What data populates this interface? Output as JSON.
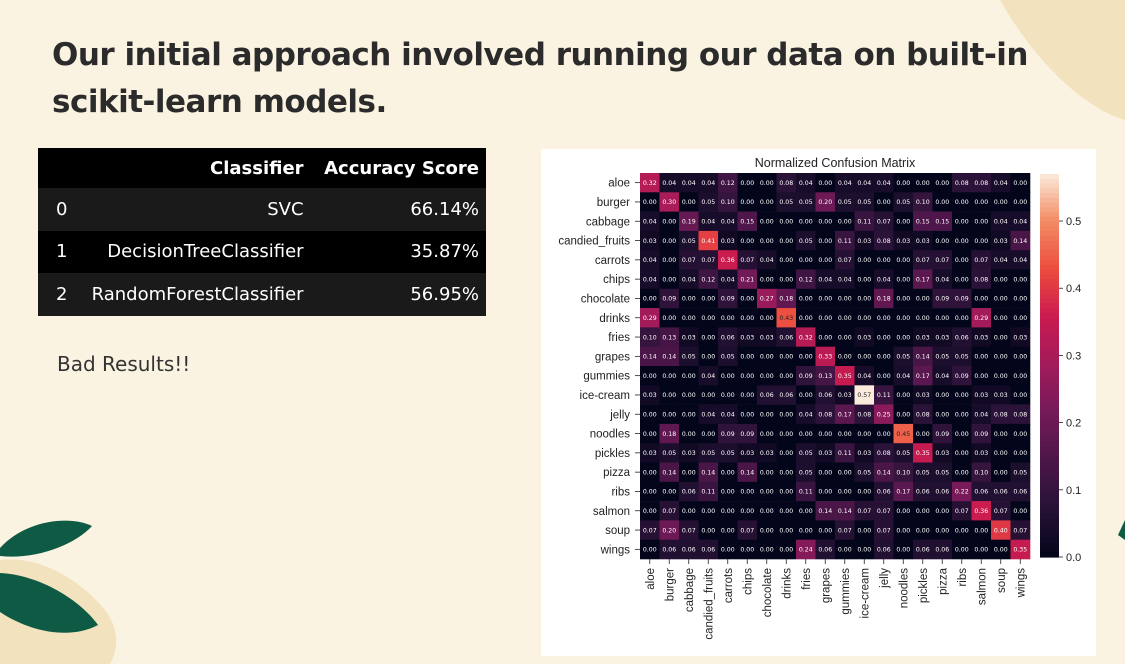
{
  "slide": {
    "title_line1": "Our initial approach involved running our data on built-in",
    "title_line2": "scikit-learn models.",
    "note": "Bad Results!!"
  },
  "results_table": {
    "headers": [
      "",
      "Classifier",
      "Accuracy Score"
    ],
    "rows": [
      {
        "index": "0",
        "classifier": "SVC",
        "accuracy": "66.14%"
      },
      {
        "index": "1",
        "classifier": "DecisionTreeClassifier",
        "accuracy": "35.87%"
      },
      {
        "index": "2",
        "classifier": "RandomForestClassifier",
        "accuracy": "56.95%"
      }
    ]
  },
  "colors": {
    "background": "#fbf3e2",
    "leaf_green": "#0f5a45",
    "leaf_beige": "#f3e4c1"
  },
  "chart_data": {
    "type": "heatmap",
    "title": "Normalized Confusion Matrix",
    "labels": [
      "aloe",
      "burger",
      "cabbage",
      "candied_fruits",
      "carrots",
      "chips",
      "chocolate",
      "drinks",
      "fries",
      "grapes",
      "gummies",
      "ice-cream",
      "jelly",
      "noodles",
      "pickles",
      "pizza",
      "ribs",
      "salmon",
      "soup",
      "wings"
    ],
    "matrix": [
      [
        0.32,
        0.04,
        0.04,
        0.04,
        0.12,
        0.0,
        0.0,
        0.08,
        0.04,
        0.0,
        0.04,
        0.04,
        0.04,
        0.0,
        0.0,
        0.0,
        0.08,
        0.08,
        0.04,
        0.0
      ],
      [
        0.0,
        0.3,
        0.0,
        0.05,
        0.1,
        0.0,
        0.0,
        0.05,
        0.05,
        0.2,
        0.05,
        0.05,
        0.0,
        0.05,
        0.1,
        0.0,
        0.0,
        0.0,
        0.0,
        0.0
      ],
      [
        0.04,
        0.0,
        0.19,
        0.04,
        0.04,
        0.15,
        0.0,
        0.0,
        0.0,
        0.0,
        0.0,
        0.11,
        0.07,
        0.0,
        0.15,
        0.15,
        0.0,
        0.0,
        0.04,
        0.04
      ],
      [
        0.03,
        0.0,
        0.05,
        0.41,
        0.03,
        0.0,
        0.0,
        0.0,
        0.05,
        0.0,
        0.11,
        0.03,
        0.08,
        0.03,
        0.03,
        0.0,
        0.0,
        0.0,
        0.03,
        0.14
      ],
      [
        0.04,
        0.0,
        0.07,
        0.07,
        0.36,
        0.07,
        0.04,
        0.0,
        0.0,
        0.0,
        0.07,
        0.0,
        0.0,
        0.0,
        0.07,
        0.07,
        0.0,
        0.07,
        0.04,
        0.04
      ],
      [
        0.04,
        0.0,
        0.04,
        0.12,
        0.04,
        0.21,
        0.0,
        0.0,
        0.12,
        0.04,
        0.04,
        0.0,
        0.04,
        0.0,
        0.17,
        0.04,
        0.0,
        0.08,
        0.0,
        0.0
      ],
      [
        0.0,
        0.09,
        0.0,
        0.0,
        0.09,
        0.0,
        0.27,
        0.18,
        0.0,
        0.0,
        0.0,
        0.0,
        0.18,
        0.0,
        0.0,
        0.09,
        0.09,
        0.0,
        0.0,
        0.0
      ],
      [
        0.29,
        0.0,
        0.0,
        0.0,
        0.0,
        0.0,
        0.0,
        0.43,
        0.0,
        0.0,
        0.0,
        0.0,
        0.0,
        0.0,
        0.0,
        0.0,
        0.0,
        0.29,
        0.0,
        0.0
      ],
      [
        0.1,
        0.13,
        0.03,
        0.0,
        0.06,
        0.03,
        0.03,
        0.06,
        0.32,
        0.0,
        0.0,
        0.03,
        0.0,
        0.0,
        0.03,
        0.03,
        0.06,
        0.03,
        0.0,
        0.03
      ],
      [
        0.14,
        0.14,
        0.05,
        0.0,
        0.05,
        0.0,
        0.0,
        0.0,
        0.0,
        0.33,
        0.0,
        0.0,
        0.0,
        0.05,
        0.14,
        0.05,
        0.05,
        0.0,
        0.0,
        0.0
      ],
      [
        0.0,
        0.0,
        0.0,
        0.04,
        0.0,
        0.0,
        0.0,
        0.0,
        0.09,
        0.13,
        0.35,
        0.04,
        0.0,
        0.04,
        0.17,
        0.04,
        0.09,
        0.0,
        0.0,
        0.0
      ],
      [
        0.03,
        0.0,
        0.0,
        0.0,
        0.0,
        0.0,
        0.06,
        0.06,
        0.0,
        0.06,
        0.03,
        0.57,
        0.11,
        0.0,
        0.03,
        0.0,
        0.0,
        0.03,
        0.03,
        0.0
      ],
      [
        0.0,
        0.0,
        0.0,
        0.04,
        0.04,
        0.0,
        0.0,
        0.0,
        0.04,
        0.08,
        0.17,
        0.08,
        0.25,
        0.0,
        0.08,
        0.0,
        0.0,
        0.04,
        0.08,
        0.08
      ],
      [
        0.0,
        0.18,
        0.0,
        0.0,
        0.09,
        0.09,
        0.0,
        0.0,
        0.0,
        0.0,
        0.0,
        0.0,
        0.0,
        0.45,
        0.0,
        0.09,
        0.0,
        0.09,
        0.0,
        0.0
      ],
      [
        0.03,
        0.05,
        0.03,
        0.05,
        0.05,
        0.03,
        0.03,
        0.0,
        0.05,
        0.03,
        0.11,
        0.03,
        0.08,
        0.05,
        0.35,
        0.03,
        0.0,
        0.03,
        0.0,
        0.0
      ],
      [
        0.0,
        0.14,
        0.0,
        0.14,
        0.0,
        0.14,
        0.0,
        0.0,
        0.05,
        0.0,
        0.0,
        0.05,
        0.14,
        0.1,
        0.05,
        0.05,
        0.0,
        0.1,
        0.0,
        0.05
      ],
      [
        0.0,
        0.0,
        0.06,
        0.11,
        0.0,
        0.0,
        0.0,
        0.0,
        0.11,
        0.0,
        0.0,
        0.0,
        0.06,
        0.17,
        0.06,
        0.06,
        0.22,
        0.06,
        0.06,
        0.06
      ],
      [
        0.0,
        0.07,
        0.0,
        0.0,
        0.0,
        0.0,
        0.0,
        0.0,
        0.0,
        0.14,
        0.14,
        0.07,
        0.07,
        0.0,
        0.0,
        0.0,
        0.07,
        0.36,
        0.07,
        0.0
      ],
      [
        0.07,
        0.2,
        0.07,
        0.0,
        0.0,
        0.07,
        0.0,
        0.0,
        0.0,
        0.0,
        0.07,
        0.0,
        0.07,
        0.0,
        0.0,
        0.0,
        0.0,
        0.0,
        0.4,
        0.07
      ],
      [
        0.0,
        0.06,
        0.06,
        0.06,
        0.0,
        0.0,
        0.0,
        0.0,
        0.24,
        0.06,
        0.0,
        0.0,
        0.06,
        0.0,
        0.06,
        0.06,
        0.0,
        0.0,
        0.0,
        0.35
      ]
    ],
    "colorbar_ticks": [
      "0.0",
      "0.1",
      "0.2",
      "0.3",
      "0.4",
      "0.5"
    ],
    "colorbar_range": [
      0,
      0.57
    ],
    "colormap": "rocket"
  }
}
